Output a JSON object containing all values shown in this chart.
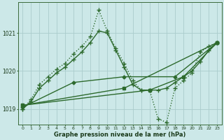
{
  "xlabel": "Graphe pression niveau de la mer (hPa)",
  "bg_color": "#cce8e8",
  "grid_color": "#aacccc",
  "line_color": "#2d6a2d",
  "xlim": [
    -0.5,
    23.5
  ],
  "ylim": [
    1018.6,
    1021.8
  ],
  "yticks": [
    1019,
    1020,
    1021
  ],
  "xticks": [
    0,
    1,
    2,
    3,
    4,
    5,
    6,
    7,
    8,
    9,
    10,
    11,
    12,
    13,
    14,
    15,
    16,
    17,
    18,
    19,
    20,
    21,
    22,
    23
  ],
  "series": [
    {
      "x": [
        0,
        1,
        2,
        3,
        4,
        5,
        6,
        7,
        8,
        9,
        10,
        11,
        12,
        13,
        14,
        15,
        16,
        17,
        18,
        19,
        20,
        21,
        22,
        23
      ],
      "y": [
        1019.0,
        1019.25,
        1019.65,
        1019.85,
        1020.05,
        1020.2,
        1020.45,
        1020.65,
        1020.9,
        1021.6,
        1021.05,
        1020.6,
        1020.2,
        1019.75,
        1019.5,
        1019.5,
        1018.75,
        1018.65,
        1019.55,
        1019.75,
        1019.95,
        1020.5,
        1020.65,
        1020.75
      ],
      "linestyle": ":",
      "marker": "+",
      "linewidth": 1.0,
      "markersize": 4
    },
    {
      "x": [
        0,
        1,
        2,
        3,
        4,
        5,
        6,
        7,
        8,
        9,
        10,
        11,
        12,
        13,
        14,
        15,
        16,
        17,
        18,
        19,
        20,
        21,
        22,
        23
      ],
      "y": [
        1019.0,
        1019.2,
        1019.55,
        1019.75,
        1019.95,
        1020.1,
        1020.3,
        1020.5,
        1020.75,
        1021.05,
        1021.0,
        1020.55,
        1020.1,
        1019.65,
        1019.5,
        1019.5,
        1019.5,
        1019.55,
        1019.7,
        1019.85,
        1020.0,
        1020.25,
        1020.55,
        1020.75
      ],
      "linestyle": "-",
      "marker": "+",
      "linewidth": 1.0,
      "markersize": 4
    },
    {
      "x": [
        0,
        6,
        12,
        18,
        23
      ],
      "y": [
        1019.05,
        1019.7,
        1019.85,
        1019.85,
        1020.75
      ],
      "linestyle": "-",
      "marker": "D",
      "linewidth": 1.0,
      "markersize": 2.5
    },
    {
      "x": [
        0,
        12,
        23
      ],
      "y": [
        1019.1,
        1019.55,
        1020.75
      ],
      "linestyle": "-",
      "marker": "s",
      "linewidth": 1.0,
      "markersize": 2.5
    },
    {
      "x": [
        0,
        15,
        19,
        23
      ],
      "y": [
        1019.1,
        1019.5,
        1019.85,
        1020.75
      ],
      "linestyle": "-",
      "marker": "s",
      "linewidth": 1.0,
      "markersize": 2.5
    }
  ]
}
